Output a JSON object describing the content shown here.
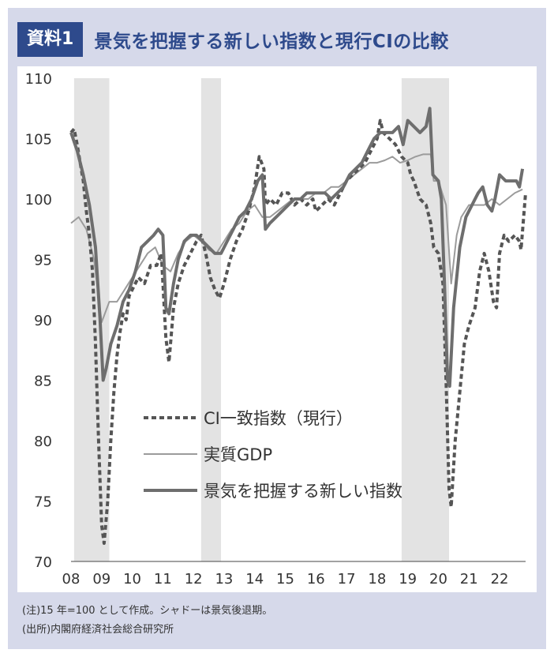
{
  "header": {
    "badge": "資料1",
    "title": "景気を把握する新しい指数と現行CIの比較"
  },
  "notes": {
    "note1": "(注)15 年=100 として作成。シャドーは景気後退期。",
    "note2": "(出所)内閣府経済社会総合研究所"
  },
  "chart_data": {
    "type": "line",
    "xlabel": "",
    "ylabel": "",
    "ylim": [
      70,
      110
    ],
    "xlim": [
      2008.0,
      2022.85
    ],
    "x_ticks": [
      {
        "x": 2008,
        "label": "08"
      },
      {
        "x": 2009,
        "label": "09"
      },
      {
        "x": 2010,
        "label": "10"
      },
      {
        "x": 2011,
        "label": "11"
      },
      {
        "x": 2012,
        "label": "12"
      },
      {
        "x": 2013,
        "label": "13"
      },
      {
        "x": 2014,
        "label": "14"
      },
      {
        "x": 2015,
        "label": "15"
      },
      {
        "x": 2016,
        "label": "16"
      },
      {
        "x": 2017,
        "label": "17"
      },
      {
        "x": 2018,
        "label": "18"
      },
      {
        "x": 2019,
        "label": "19"
      },
      {
        "x": 2020,
        "label": "20"
      },
      {
        "x": 2021,
        "label": "21"
      },
      {
        "x": 2022,
        "label": "22"
      }
    ],
    "y_ticks": [
      110,
      105,
      100,
      95,
      90,
      85,
      80,
      75,
      70
    ],
    "recessions": [
      {
        "start": 2008.1,
        "end": 2009.25
      },
      {
        "start": 2012.25,
        "end": 2012.9
      },
      {
        "start": 2018.8,
        "end": 2020.35
      }
    ],
    "legend_position": "lower-center",
    "series": [
      {
        "name": "CI一致指数（現行）",
        "style": "dashed",
        "color": "#555555",
        "points": [
          [
            2008.0,
            105.5
          ],
          [
            2008.1,
            105.8
          ],
          [
            2008.2,
            104.5
          ],
          [
            2008.3,
            103.0
          ],
          [
            2008.4,
            101.5
          ],
          [
            2008.5,
            99.0
          ],
          [
            2008.6,
            97.0
          ],
          [
            2008.7,
            94.0
          ],
          [
            2008.8,
            88.0
          ],
          [
            2008.9,
            80.0
          ],
          [
            2009.0,
            73.0
          ],
          [
            2009.08,
            71.5
          ],
          [
            2009.2,
            75.0
          ],
          [
            2009.3,
            80.0
          ],
          [
            2009.4,
            84.0
          ],
          [
            2009.5,
            87.0
          ],
          [
            2009.6,
            89.0
          ],
          [
            2009.7,
            90.5
          ],
          [
            2009.8,
            90.0
          ],
          [
            2009.9,
            92.0
          ],
          [
            2010.0,
            92.5
          ],
          [
            2010.2,
            93.5
          ],
          [
            2010.4,
            93.0
          ],
          [
            2010.6,
            94.5
          ],
          [
            2010.8,
            94.5
          ],
          [
            2010.95,
            95.5
          ],
          [
            2011.1,
            88.5
          ],
          [
            2011.2,
            86.5
          ],
          [
            2011.35,
            91.0
          ],
          [
            2011.5,
            93.0
          ],
          [
            2011.7,
            94.5
          ],
          [
            2011.9,
            95.5
          ],
          [
            2012.1,
            96.5
          ],
          [
            2012.25,
            97.0
          ],
          [
            2012.4,
            95.5
          ],
          [
            2012.55,
            93.5
          ],
          [
            2012.7,
            92.5
          ],
          [
            2012.85,
            91.8
          ],
          [
            2013.0,
            93.0
          ],
          [
            2013.2,
            95.0
          ],
          [
            2013.4,
            96.5
          ],
          [
            2013.6,
            97.5
          ],
          [
            2013.8,
            99.0
          ],
          [
            2014.0,
            101.0
          ],
          [
            2014.15,
            103.5
          ],
          [
            2014.3,
            102.5
          ],
          [
            2014.35,
            99.5
          ],
          [
            2014.5,
            100.0
          ],
          [
            2014.7,
            99.5
          ],
          [
            2014.9,
            100.5
          ],
          [
            2015.1,
            100.5
          ],
          [
            2015.3,
            99.5
          ],
          [
            2015.5,
            100.0
          ],
          [
            2015.7,
            99.5
          ],
          [
            2015.9,
            100.0
          ],
          [
            2016.0,
            99.0
          ],
          [
            2016.2,
            99.5
          ],
          [
            2016.4,
            100.0
          ],
          [
            2016.6,
            99.5
          ],
          [
            2016.8,
            100.5
          ],
          [
            2017.0,
            101.5
          ],
          [
            2017.2,
            102.0
          ],
          [
            2017.4,
            102.5
          ],
          [
            2017.6,
            103.0
          ],
          [
            2017.8,
            104.0
          ],
          [
            2018.0,
            105.0
          ],
          [
            2018.1,
            106.5
          ],
          [
            2018.2,
            105.5
          ],
          [
            2018.4,
            105.0
          ],
          [
            2018.6,
            104.5
          ],
          [
            2018.8,
            103.5
          ],
          [
            2019.0,
            103.0
          ],
          [
            2019.1,
            102.0
          ],
          [
            2019.2,
            101.5
          ],
          [
            2019.4,
            100.0
          ],
          [
            2019.6,
            99.5
          ],
          [
            2019.75,
            98.0
          ],
          [
            2019.85,
            96.0
          ],
          [
            2020.0,
            95.5
          ],
          [
            2020.15,
            93.0
          ],
          [
            2020.25,
            85.0
          ],
          [
            2020.35,
            76.0
          ],
          [
            2020.42,
            74.5
          ],
          [
            2020.55,
            80.0
          ],
          [
            2020.7,
            84.0
          ],
          [
            2020.85,
            88.0
          ],
          [
            2021.0,
            89.5
          ],
          [
            2021.2,
            91.0
          ],
          [
            2021.35,
            94.0
          ],
          [
            2021.5,
            95.5
          ],
          [
            2021.65,
            94.0
          ],
          [
            2021.8,
            91.5
          ],
          [
            2021.9,
            91.0
          ],
          [
            2022.0,
            95.5
          ],
          [
            2022.15,
            97.0
          ],
          [
            2022.3,
            96.5
          ],
          [
            2022.5,
            97.0
          ],
          [
            2022.65,
            96.5
          ],
          [
            2022.7,
            95.8
          ],
          [
            2022.85,
            100.5
          ]
        ]
      },
      {
        "name": "実質GDP",
        "style": "solid-thin",
        "color": "#9b9b9b",
        "points": [
          [
            2008.0,
            98.0
          ],
          [
            2008.25,
            98.5
          ],
          [
            2008.5,
            97.5
          ],
          [
            2008.75,
            95.0
          ],
          [
            2009.0,
            89.8
          ],
          [
            2009.25,
            91.5
          ],
          [
            2009.5,
            91.5
          ],
          [
            2009.75,
            92.5
          ],
          [
            2010.0,
            93.5
          ],
          [
            2010.25,
            94.5
          ],
          [
            2010.5,
            95.5
          ],
          [
            2010.75,
            96.0
          ],
          [
            2011.0,
            94.5
          ],
          [
            2011.25,
            94.0
          ],
          [
            2011.5,
            95.5
          ],
          [
            2011.75,
            96.5
          ],
          [
            2012.0,
            97.0
          ],
          [
            2012.25,
            96.5
          ],
          [
            2012.5,
            95.8
          ],
          [
            2012.75,
            95.5
          ],
          [
            2013.0,
            96.5
          ],
          [
            2013.25,
            97.5
          ],
          [
            2013.5,
            98.0
          ],
          [
            2013.75,
            99.0
          ],
          [
            2014.0,
            99.5
          ],
          [
            2014.25,
            98.5
          ],
          [
            2014.5,
            98.5
          ],
          [
            2014.75,
            99.0
          ],
          [
            2015.0,
            99.5
          ],
          [
            2015.25,
            100.0
          ],
          [
            2015.5,
            100.0
          ],
          [
            2015.75,
            100.0
          ],
          [
            2016.0,
            100.5
          ],
          [
            2016.25,
            100.5
          ],
          [
            2016.5,
            101.0
          ],
          [
            2016.75,
            101.0
          ],
          [
            2017.0,
            101.5
          ],
          [
            2017.25,
            102.0
          ],
          [
            2017.5,
            102.5
          ],
          [
            2017.75,
            103.0
          ],
          [
            2018.0,
            103.0
          ],
          [
            2018.25,
            103.2
          ],
          [
            2018.5,
            103.5
          ],
          [
            2018.75,
            103.0
          ],
          [
            2019.0,
            103.2
          ],
          [
            2019.25,
            103.5
          ],
          [
            2019.5,
            103.7
          ],
          [
            2019.75,
            103.7
          ],
          [
            2019.85,
            101.5
          ],
          [
            2020.0,
            101.5
          ],
          [
            2020.25,
            99.5
          ],
          [
            2020.42,
            93.0
          ],
          [
            2020.6,
            97.0
          ],
          [
            2020.75,
            98.5
          ],
          [
            2021.0,
            99.5
          ],
          [
            2021.25,
            99.5
          ],
          [
            2021.5,
            99.5
          ],
          [
            2021.75,
            100.0
          ],
          [
            2022.0,
            99.5
          ],
          [
            2022.25,
            100.0
          ],
          [
            2022.5,
            100.5
          ],
          [
            2022.75,
            100.8
          ]
        ]
      },
      {
        "name": "景気を把握する新しい指数",
        "style": "solid-thick",
        "color": "#6e6e6e",
        "points": [
          [
            2008.0,
            105.5
          ],
          [
            2008.2,
            104.0
          ],
          [
            2008.4,
            102.0
          ],
          [
            2008.6,
            99.5
          ],
          [
            2008.8,
            96.0
          ],
          [
            2008.95,
            90.0
          ],
          [
            2009.05,
            85.0
          ],
          [
            2009.15,
            86.0
          ],
          [
            2009.3,
            88.0
          ],
          [
            2009.5,
            89.5
          ],
          [
            2009.7,
            91.5
          ],
          [
            2009.9,
            92.5
          ],
          [
            2010.1,
            94.0
          ],
          [
            2010.3,
            96.0
          ],
          [
            2010.5,
            96.5
          ],
          [
            2010.7,
            97.0
          ],
          [
            2010.85,
            97.5
          ],
          [
            2011.0,
            97.0
          ],
          [
            2011.1,
            91.0
          ],
          [
            2011.2,
            90.5
          ],
          [
            2011.35,
            93.0
          ],
          [
            2011.5,
            95.0
          ],
          [
            2011.7,
            96.5
          ],
          [
            2011.9,
            97.0
          ],
          [
            2012.1,
            97.0
          ],
          [
            2012.3,
            96.5
          ],
          [
            2012.5,
            96.0
          ],
          [
            2012.7,
            95.5
          ],
          [
            2012.9,
            95.5
          ],
          [
            2013.1,
            96.5
          ],
          [
            2013.3,
            97.5
          ],
          [
            2013.5,
            98.5
          ],
          [
            2013.7,
            99.0
          ],
          [
            2013.9,
            100.0
          ],
          [
            2014.1,
            101.5
          ],
          [
            2014.25,
            102.0
          ],
          [
            2014.35,
            97.5
          ],
          [
            2014.5,
            98.0
          ],
          [
            2014.7,
            98.5
          ],
          [
            2014.9,
            99.0
          ],
          [
            2015.1,
            99.5
          ],
          [
            2015.3,
            100.0
          ],
          [
            2015.5,
            100.0
          ],
          [
            2015.7,
            100.5
          ],
          [
            2015.9,
            100.5
          ],
          [
            2016.1,
            100.5
          ],
          [
            2016.3,
            100.5
          ],
          [
            2016.5,
            100.0
          ],
          [
            2016.7,
            100.5
          ],
          [
            2016.9,
            101.0
          ],
          [
            2017.1,
            102.0
          ],
          [
            2017.3,
            102.5
          ],
          [
            2017.5,
            103.0
          ],
          [
            2017.7,
            104.0
          ],
          [
            2017.9,
            105.0
          ],
          [
            2018.1,
            105.5
          ],
          [
            2018.3,
            105.5
          ],
          [
            2018.5,
            105.5
          ],
          [
            2018.7,
            106.0
          ],
          [
            2018.85,
            104.5
          ],
          [
            2019.0,
            106.5
          ],
          [
            2019.2,
            106.0
          ],
          [
            2019.4,
            105.5
          ],
          [
            2019.6,
            106.0
          ],
          [
            2019.72,
            107.5
          ],
          [
            2019.82,
            102.0
          ],
          [
            2020.0,
            101.5
          ],
          [
            2020.1,
            100.0
          ],
          [
            2020.2,
            93.0
          ],
          [
            2020.3,
            85.0
          ],
          [
            2020.37,
            84.5
          ],
          [
            2020.5,
            91.0
          ],
          [
            2020.7,
            96.0
          ],
          [
            2020.9,
            98.5
          ],
          [
            2021.1,
            99.5
          ],
          [
            2021.3,
            100.5
          ],
          [
            2021.45,
            101.0
          ],
          [
            2021.6,
            99.5
          ],
          [
            2021.75,
            99.0
          ],
          [
            2021.85,
            100.0
          ],
          [
            2022.0,
            102.0
          ],
          [
            2022.2,
            101.5
          ],
          [
            2022.4,
            101.5
          ],
          [
            2022.55,
            101.5
          ],
          [
            2022.65,
            101.0
          ],
          [
            2022.75,
            102.5
          ]
        ]
      }
    ]
  }
}
